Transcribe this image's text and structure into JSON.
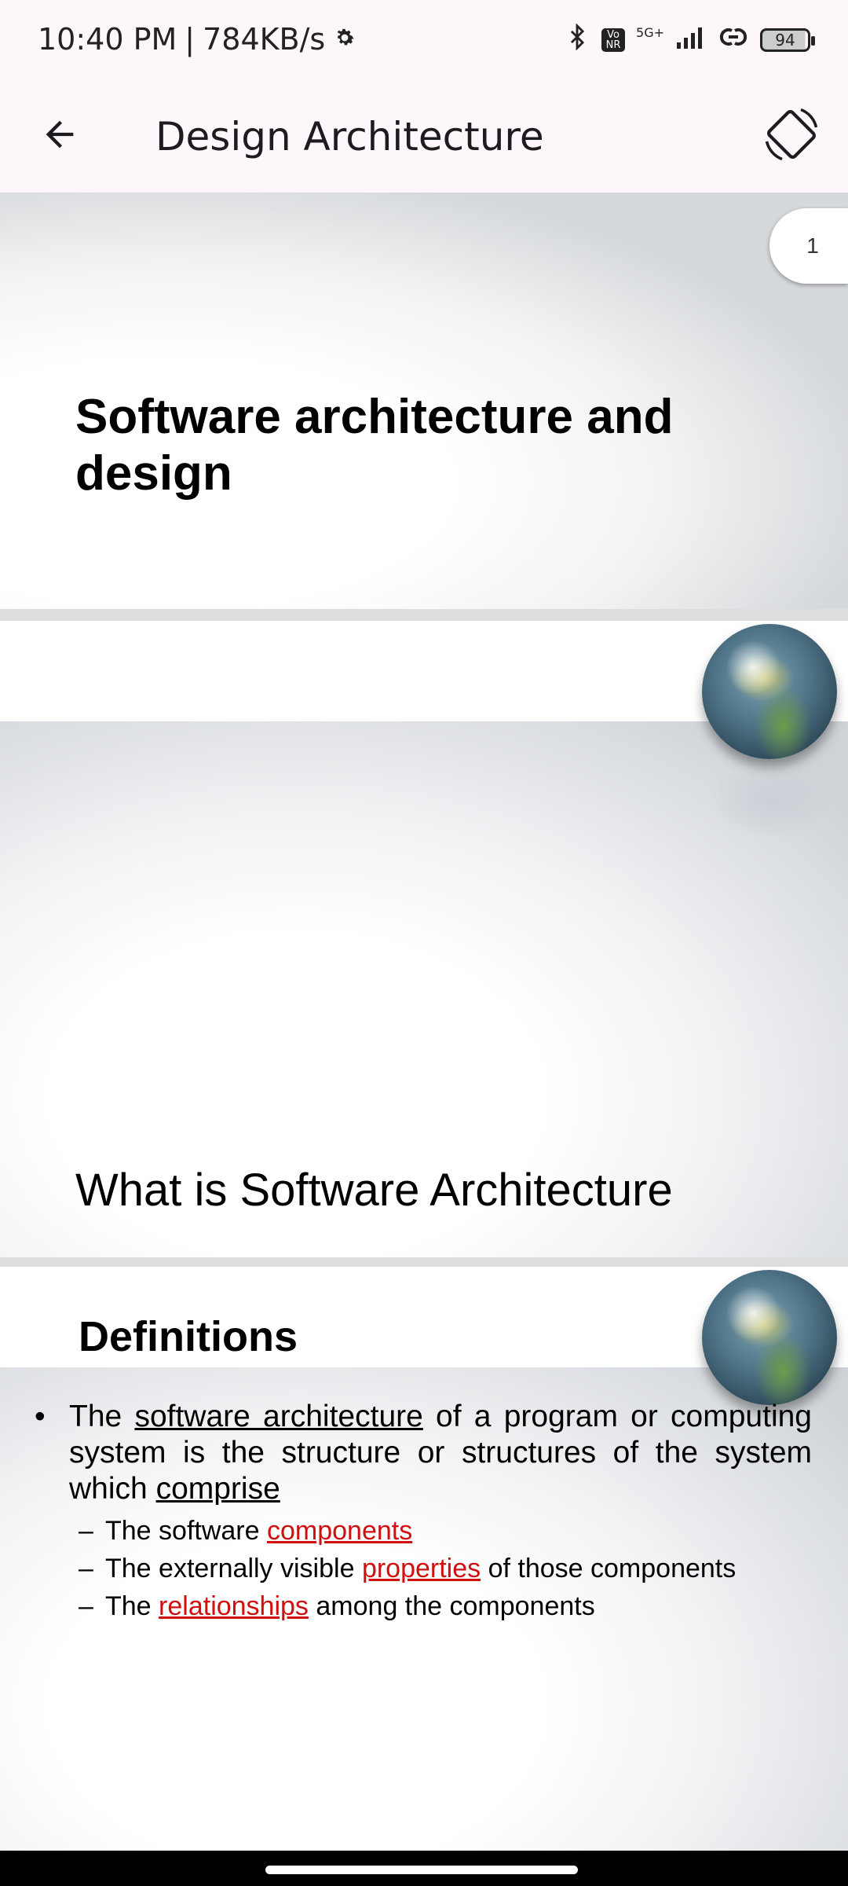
{
  "status_bar": {
    "time": "10:40 PM",
    "separator": "|",
    "network_speed": "784KB/s",
    "network_type": "5G+",
    "volte_badge": "Vo NR",
    "battery": "94",
    "icons": [
      "settings-gear-icon",
      "bluetooth-icon",
      "volte-icon",
      "signal-icon",
      "link-icon",
      "battery-icon"
    ]
  },
  "app_bar": {
    "title": "Design Architecture",
    "back_icon": "arrow-left-icon",
    "rotate_icon": "screen-rotation-icon"
  },
  "viewer": {
    "page_indicator": "1"
  },
  "slides": [
    {
      "title": "Software architecture and design"
    },
    {
      "title": "What is Software Architecture"
    },
    {
      "heading": "Definitions",
      "bullet": {
        "bullet_char": "•",
        "text_1": "The",
        "term_1": "software architecture",
        "text_2": "of a program or computing system is the structure or structures of the system which",
        "term_2": "comprise"
      },
      "sub_items": [
        {
          "dash": "–",
          "before": "The software",
          "link": "components",
          "after": ""
        },
        {
          "dash": "–",
          "before": "The externally visible",
          "link": "properties",
          "after": "of those components"
        },
        {
          "dash": "–",
          "before": "The",
          "link": "relationships",
          "after": "among the components"
        }
      ],
      "link_color": "#d01010"
    }
  ]
}
